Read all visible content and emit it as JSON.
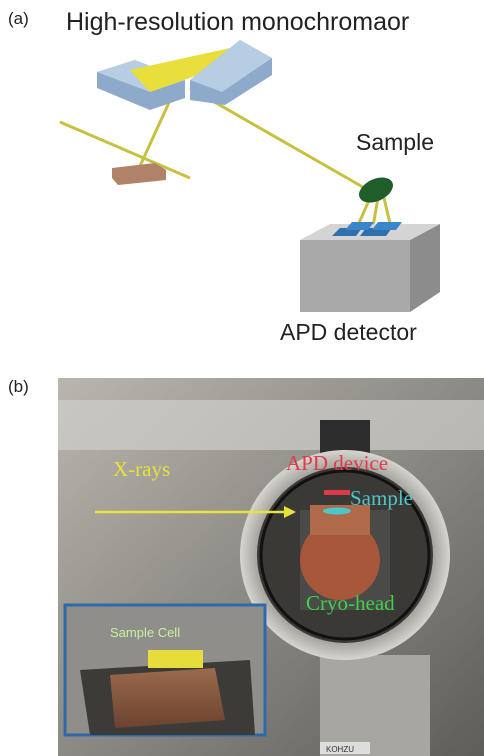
{
  "panel_a": {
    "label": "(a)",
    "title": "High-resolution monochromaor",
    "sample_label": "Sample",
    "detector_label": "APD detector"
  },
  "panel_b": {
    "label": "(b)",
    "xrays_label": "X-rays",
    "apd_label": "APD device",
    "sample_label": "Sample",
    "cryo_label": "Cryo-head",
    "inset_label": "Sample Cell",
    "plate_label": "KOHZU"
  }
}
